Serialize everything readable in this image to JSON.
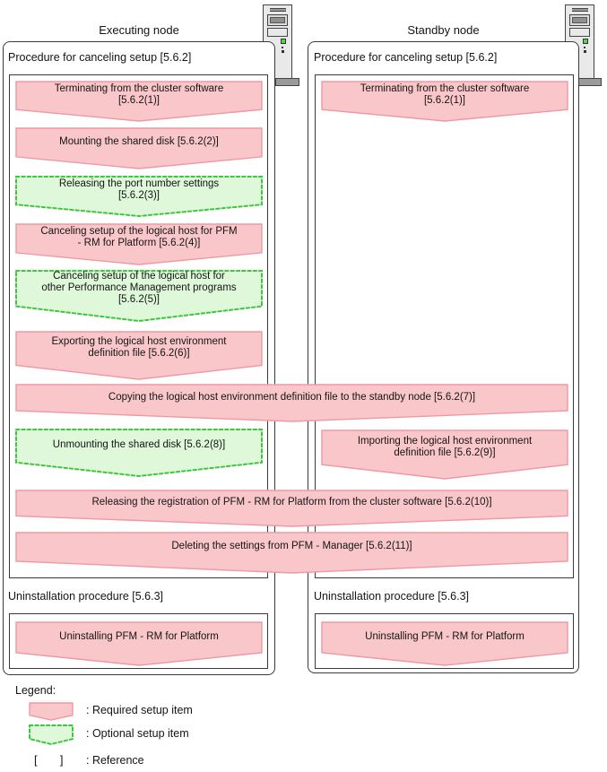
{
  "columns": [
    {
      "title": "Executing node",
      "procedure_label": "Procedure for canceling setup [5.6.2]",
      "uninstall_label": "Uninstallation procedure [5.6.3]"
    },
    {
      "title": "Standby node",
      "procedure_label": "Procedure for canceling setup [5.6.2]",
      "uninstall_label": "Uninstallation procedure [5.6.3]"
    }
  ],
  "icons": {
    "executing_node": "server-tower-icon",
    "standby_node": "server-tower-icon"
  },
  "steps": [
    {
      "id": "exec-terminating",
      "node": "executing",
      "type": "required",
      "label": "Terminating from the cluster software\n[5.6.2(1)]"
    },
    {
      "id": "exec-mounting",
      "node": "executing",
      "type": "required",
      "label": "Mounting the shared disk [5.6.2(2)]"
    },
    {
      "id": "exec-releasing-ports",
      "node": "executing",
      "type": "optional",
      "label": "Releasing the port number settings\n[5.6.2(3)]"
    },
    {
      "id": "exec-cancel-setup-pfm-rm",
      "node": "executing",
      "type": "required",
      "label": "Canceling setup of the logical host for PFM\n- RM for Platform [5.6.2(4)]"
    },
    {
      "id": "exec-cancel-setup-other-pm",
      "node": "executing",
      "type": "optional",
      "label": "Canceling setup of the logical host for\nother Performance Management programs\n[5.6.2(5)]"
    },
    {
      "id": "exec-exporting",
      "node": "executing",
      "type": "required",
      "label": "Exporting the logical host environment\ndefinition file [5.6.2(6)]"
    },
    {
      "id": "copying-to-standby",
      "node": "both",
      "type": "required",
      "label": "Copying the logical host environment definition file to the standby node [5.6.2(7)]"
    },
    {
      "id": "exec-unmounting",
      "node": "executing",
      "type": "optional",
      "label": "Unmounting the shared disk [5.6.2(8)]"
    },
    {
      "id": "standby-importing",
      "node": "standby",
      "type": "required",
      "label": "Importing the logical host environment\ndefinition file [5.6.2(9)]"
    },
    {
      "id": "releasing-registration",
      "node": "both",
      "type": "required",
      "label": "Releasing the registration of PFM - RM for Platform from the cluster software [5.6.2(10)]"
    },
    {
      "id": "deleting-settings",
      "node": "both",
      "type": "required",
      "label": "Deleting the settings from PFM - Manager [5.6.2(11)]"
    },
    {
      "id": "standby-terminating",
      "node": "standby",
      "type": "required",
      "label": "Terminating from the cluster software\n[5.6.2(1)]"
    },
    {
      "id": "exec-uninstalling",
      "node": "executing",
      "type": "required",
      "label": "Uninstalling PFM - RM for Platform"
    },
    {
      "id": "standby-uninstalling",
      "node": "standby",
      "type": "required",
      "label": "Uninstalling PFM - RM for Platform"
    }
  ],
  "legend": {
    "title": "Legend:",
    "required_label": ": Required setup item",
    "optional_label": ": Optional setup item",
    "reference_symbol": "[  ]",
    "reference_label": ": Reference"
  },
  "colors": {
    "required_fill": "#f9c7ca",
    "required_stroke": "#ee99a1",
    "optional_fill": "#def8d9",
    "optional_stroke": "#3ec73e",
    "box_border": "#3a3a3a"
  }
}
